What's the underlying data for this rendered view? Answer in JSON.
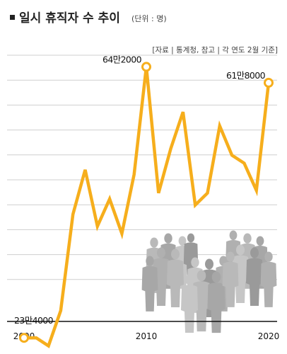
{
  "title": "일시 휴직자 수 추이",
  "unit": "(단위 : 명)",
  "source": "[자료 | 통계청, 참고 | 각 연도 2월 기준]",
  "chart_data": {
    "type": "line",
    "title": "일시 휴직자 수 추이",
    "subtitle": "(단위 : 명)",
    "x": [
      2000,
      2001,
      2002,
      2003,
      2004,
      2005,
      2006,
      2007,
      2008,
      2009,
      2010,
      2011,
      2012,
      2013,
      2014,
      2015,
      2016,
      2017,
      2018,
      2019,
      2020
    ],
    "series": [
      {
        "values": [
          234000,
          234000,
          222000,
          275000,
          420000,
          487000,
          402000,
          443000,
          391000,
          480000,
          642000,
          452000,
          519000,
          574000,
          434000,
          452000,
          553000,
          509000,
          497000,
          456000,
          618000
        ]
      }
    ],
    "xticks": [
      "2000",
      "2010",
      "2020"
    ],
    "xlim": [
      2000,
      2020
    ],
    "ylim": [
      150000,
      700000
    ],
    "grid": true,
    "line_color": "#F6AE1C",
    "annotations": [
      {
        "x": 2000,
        "text": "23만4000"
      },
      {
        "x": 2010,
        "text": "64만2000"
      },
      {
        "x": 2020,
        "text": "61만8000"
      }
    ]
  }
}
